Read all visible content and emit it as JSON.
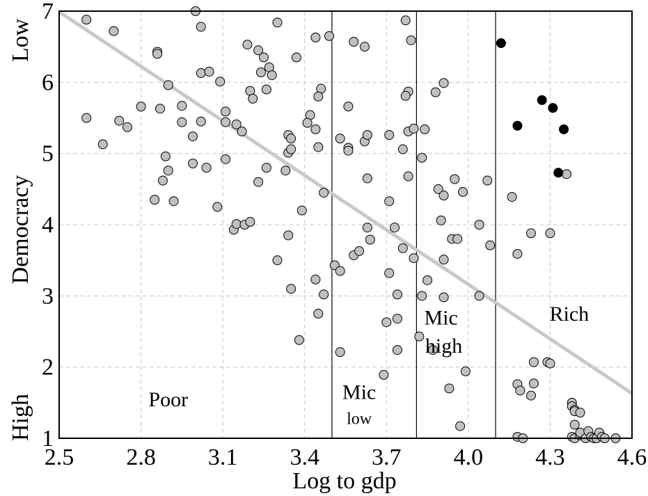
{
  "chart_data": {
    "type": "scatter",
    "xlabel": "Log to gdp",
    "ylabel": "Democracy",
    "y_end_labels": {
      "top": "Low",
      "bottom": "High"
    },
    "xlim": [
      2.5,
      4.6
    ],
    "ylim": [
      1,
      7
    ],
    "x_ticks": [
      "2.5",
      "2.8",
      "3.1",
      "3.4",
      "3.7",
      "4.0",
      "4.3",
      "4.6"
    ],
    "y_ticks": [
      "1",
      "2",
      "3",
      "4",
      "5",
      "6",
      "7"
    ],
    "grid": true,
    "vertical_dividers": [
      3.5,
      3.81,
      4.1
    ],
    "region_labels": [
      {
        "text": "Poor",
        "x": 2.9,
        "y": 1.45
      },
      {
        "text": "Mic",
        "x": 3.6,
        "y": 1.55
      },
      {
        "text": "low",
        "x": 3.6,
        "y": 1.2,
        "small": true
      },
      {
        "text": "Mic",
        "x": 3.9,
        "y": 2.6
      },
      {
        "text": "high",
        "x": 3.91,
        "y": 2.2
      },
      {
        "text": "Rich",
        "x": 4.37,
        "y": 2.65
      }
    ],
    "trend_line": {
      "x": [
        2.5,
        4.6
      ],
      "y": [
        6.99,
        1.63
      ],
      "color": "#c8c8c8"
    },
    "series": [
      {
        "color": "#c0c0c0",
        "points": [
          [
            2.6,
            6.88
          ],
          [
            2.7,
            6.72
          ],
          [
            2.86,
            6.43
          ],
          [
            2.86,
            6.4
          ],
          [
            3.0,
            7.0
          ],
          [
            3.02,
            6.78
          ],
          [
            3.3,
            6.84
          ],
          [
            3.19,
            6.53
          ],
          [
            3.23,
            6.45
          ],
          [
            3.25,
            6.35
          ],
          [
            3.24,
            6.14
          ],
          [
            3.27,
            6.21
          ],
          [
            3.28,
            6.1
          ],
          [
            3.37,
            6.35
          ],
          [
            3.44,
            6.63
          ],
          [
            3.49,
            6.65
          ],
          [
            3.58,
            6.57
          ],
          [
            3.62,
            6.5
          ],
          [
            3.77,
            6.87
          ],
          [
            3.79,
            6.59
          ],
          [
            2.9,
            5.96
          ],
          [
            3.02,
            6.13
          ],
          [
            3.05,
            6.15
          ],
          [
            3.09,
            6.01
          ],
          [
            3.2,
            5.88
          ],
          [
            3.21,
            5.77
          ],
          [
            3.26,
            5.9
          ],
          [
            3.46,
            5.91
          ],
          [
            3.45,
            5.8
          ],
          [
            3.56,
            5.66
          ],
          [
            3.78,
            5.87
          ],
          [
            3.77,
            5.81
          ],
          [
            3.88,
            5.86
          ],
          [
            3.91,
            5.99
          ],
          [
            2.6,
            5.5
          ],
          [
            2.72,
            5.46
          ],
          [
            2.75,
            5.37
          ],
          [
            2.8,
            5.66
          ],
          [
            2.87,
            5.63
          ],
          [
            2.95,
            5.67
          ],
          [
            2.95,
            5.44
          ],
          [
            2.99,
            5.24
          ],
          [
            3.02,
            5.45
          ],
          [
            3.11,
            5.59
          ],
          [
            3.11,
            5.44
          ],
          [
            3.15,
            5.41
          ],
          [
            3.17,
            5.31
          ],
          [
            3.34,
            5.26
          ],
          [
            3.35,
            5.21
          ],
          [
            3.42,
            5.54
          ],
          [
            3.41,
            5.43
          ],
          [
            3.44,
            5.34
          ],
          [
            3.45,
            5.09
          ],
          [
            3.53,
            5.21
          ],
          [
            3.56,
            5.08
          ],
          [
            3.56,
            5.04
          ],
          [
            3.62,
            5.17
          ],
          [
            3.63,
            5.26
          ],
          [
            3.71,
            5.26
          ],
          [
            3.78,
            5.31
          ],
          [
            3.8,
            5.35
          ],
          [
            3.84,
            5.34
          ],
          [
            2.66,
            5.13
          ],
          [
            2.89,
            4.96
          ],
          [
            2.9,
            4.76
          ],
          [
            2.88,
            4.62
          ],
          [
            2.85,
            4.35
          ],
          [
            2.92,
            4.33
          ],
          [
            2.99,
            4.86
          ],
          [
            3.04,
            4.8
          ],
          [
            3.11,
            4.92
          ],
          [
            3.08,
            4.25
          ],
          [
            3.23,
            4.6
          ],
          [
            3.26,
            4.8
          ],
          [
            3.33,
            4.76
          ],
          [
            3.34,
            5.01
          ],
          [
            3.35,
            5.06
          ],
          [
            3.47,
            4.45
          ],
          [
            3.63,
            4.65
          ],
          [
            3.76,
            5.06
          ],
          [
            3.78,
            4.68
          ],
          [
            3.83,
            4.94
          ],
          [
            3.89,
            4.5
          ],
          [
            3.91,
            4.41
          ],
          [
            3.95,
            4.64
          ],
          [
            3.98,
            4.46
          ],
          [
            4.07,
            4.62
          ],
          [
            3.14,
            3.93
          ],
          [
            3.15,
            4.01
          ],
          [
            3.18,
            4.0
          ],
          [
            3.2,
            4.04
          ],
          [
            3.39,
            4.2
          ],
          [
            3.63,
            3.96
          ],
          [
            3.64,
            3.79
          ],
          [
            3.71,
            4.33
          ],
          [
            3.73,
            3.96
          ],
          [
            3.76,
            3.67
          ],
          [
            3.8,
            3.53
          ],
          [
            3.9,
            4.06
          ],
          [
            3.94,
            3.8
          ],
          [
            3.96,
            3.8
          ],
          [
            4.04,
            4.0
          ],
          [
            4.08,
            3.71
          ],
          [
            3.3,
            3.5
          ],
          [
            3.34,
            3.85
          ],
          [
            3.35,
            3.1
          ],
          [
            3.44,
            3.23
          ],
          [
            3.47,
            3.02
          ],
          [
            3.51,
            3.43
          ],
          [
            3.53,
            3.35
          ],
          [
            3.58,
            3.57
          ],
          [
            3.6,
            3.63
          ],
          [
            3.71,
            3.32
          ],
          [
            3.74,
            3.02
          ],
          [
            3.85,
            3.22
          ],
          [
            3.83,
            3.0
          ],
          [
            3.91,
            3.51
          ],
          [
            3.91,
            2.98
          ],
          [
            4.04,
            3.0
          ],
          [
            3.45,
            2.75
          ],
          [
            3.7,
            2.63
          ],
          [
            3.74,
            2.68
          ],
          [
            3.38,
            2.38
          ],
          [
            3.53,
            2.21
          ],
          [
            3.74,
            2.24
          ],
          [
            3.82,
            2.43
          ],
          [
            3.87,
            2.24
          ],
          [
            3.69,
            1.89
          ],
          [
            3.93,
            1.7
          ],
          [
            3.99,
            1.94
          ],
          [
            3.97,
            1.17
          ],
          [
            4.16,
            4.39
          ],
          [
            4.18,
            3.59
          ],
          [
            4.23,
            3.88
          ],
          [
            4.3,
            3.88
          ],
          [
            4.36,
            4.71
          ],
          [
            4.24,
            2.07
          ],
          [
            4.29,
            2.07
          ],
          [
            4.3,
            2.05
          ],
          [
            4.18,
            1.76
          ],
          [
            4.19,
            1.67
          ],
          [
            4.23,
            1.6
          ],
          [
            4.24,
            1.77
          ],
          [
            4.38,
            1.5
          ],
          [
            4.38,
            1.45
          ],
          [
            4.39,
            1.4
          ],
          [
            4.39,
            1.38
          ],
          [
            4.41,
            1.36
          ],
          [
            4.39,
            1.19
          ],
          [
            4.18,
            1.02
          ],
          [
            4.2,
            1.0
          ],
          [
            4.38,
            1.02
          ],
          [
            4.39,
            1.0
          ],
          [
            4.41,
            1.04
          ],
          [
            4.41,
            1.08
          ],
          [
            4.43,
            1.0
          ],
          [
            4.44,
            1.1
          ],
          [
            4.45,
            1.02
          ],
          [
            4.46,
            1.0
          ],
          [
            4.47,
            1.0
          ],
          [
            4.48,
            1.08
          ],
          [
            4.49,
            1.02
          ],
          [
            4.5,
            1.0
          ],
          [
            4.54,
            1.0
          ]
        ]
      },
      {
        "color": "#000000",
        "points": [
          [
            4.12,
            6.55
          ],
          [
            4.18,
            5.39
          ],
          [
            4.27,
            5.75
          ],
          [
            4.31,
            5.64
          ],
          [
            4.35,
            5.34
          ],
          [
            4.33,
            4.73
          ]
        ]
      }
    ]
  }
}
